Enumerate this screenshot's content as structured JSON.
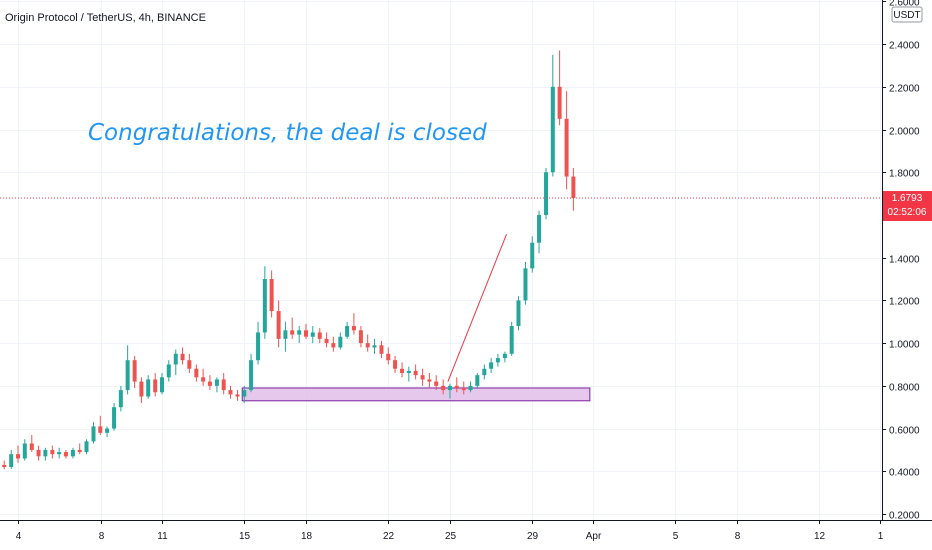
{
  "header": {
    "title": "Origin Protocol / TetherUS, 4h, BINANCE"
  },
  "annotation": {
    "text": "Congratulations, the deal is closed"
  },
  "price_scale": {
    "currency": "USDT",
    "last_price": "1.6793",
    "countdown": "02:52:06"
  },
  "colors": {
    "up": "#26a69a",
    "down": "#ef5350",
    "trend_line": "#f23645",
    "zone_fill": "#e1bee7",
    "zone_border": "#7b1fa2",
    "annotation": "#2196f3",
    "last_price": "#f23645",
    "axis": "#131722"
  },
  "chart_data": {
    "type": "candlestick",
    "title": "Origin Protocol / TetherUS, 4h, BINANCE",
    "x_tick_labels": [
      "4",
      "8",
      "11",
      "15",
      "18",
      "22",
      "25",
      "29",
      "Apr",
      "5",
      "8",
      "12",
      "1"
    ],
    "y_tick_labels": [
      "2.6000",
      "2.4000",
      "2.2000",
      "2.0000",
      "1.8000",
      "1.4000",
      "1.2000",
      "1.0000",
      "0.8000",
      "0.6000",
      "0.4000",
      "0.2000"
    ],
    "ylim": [
      0.18,
      2.62
    ],
    "x_range_days": [
      2,
      39
    ],
    "grid": true,
    "last_price": 1.6793,
    "support_zone": {
      "x_start": 14.9,
      "x_end": 31.8,
      "low": 0.73,
      "high": 0.79
    },
    "trend_line": [
      {
        "x": 24.9,
        "y": 0.82
      },
      {
        "x": 27.75,
        "y": 1.51
      }
    ],
    "candles": [
      [
        2.0,
        0.39,
        0.41,
        0.37,
        0.4
      ],
      [
        2.33,
        0.4,
        0.42,
        0.38,
        0.41
      ],
      [
        2.67,
        0.41,
        0.43,
        0.39,
        0.4
      ],
      [
        3.0,
        0.4,
        0.44,
        0.39,
        0.43
      ],
      [
        3.33,
        0.43,
        0.45,
        0.41,
        0.42
      ],
      [
        3.67,
        0.42,
        0.5,
        0.41,
        0.48
      ],
      [
        4.0,
        0.48,
        0.52,
        0.44,
        0.46
      ],
      [
        4.33,
        0.46,
        0.55,
        0.45,
        0.53
      ],
      [
        4.67,
        0.53,
        0.57,
        0.49,
        0.5
      ],
      [
        5.0,
        0.5,
        0.52,
        0.45,
        0.47
      ],
      [
        5.33,
        0.47,
        0.51,
        0.45,
        0.5
      ],
      [
        5.67,
        0.5,
        0.52,
        0.46,
        0.48
      ],
      [
        6.0,
        0.48,
        0.51,
        0.46,
        0.49
      ],
      [
        6.33,
        0.49,
        0.5,
        0.46,
        0.47
      ],
      [
        6.67,
        0.47,
        0.51,
        0.46,
        0.5
      ],
      [
        7.0,
        0.5,
        0.53,
        0.48,
        0.49
      ],
      [
        7.33,
        0.49,
        0.55,
        0.48,
        0.54
      ],
      [
        7.67,
        0.54,
        0.63,
        0.53,
        0.61
      ],
      [
        8.0,
        0.61,
        0.66,
        0.57,
        0.58
      ],
      [
        8.33,
        0.58,
        0.61,
        0.56,
        0.6
      ],
      [
        8.67,
        0.6,
        0.72,
        0.59,
        0.7
      ],
      [
        9.0,
        0.7,
        0.8,
        0.68,
        0.78
      ],
      [
        9.33,
        0.78,
        0.99,
        0.76,
        0.92
      ],
      [
        9.67,
        0.92,
        0.94,
        0.79,
        0.82
      ],
      [
        10.0,
        0.82,
        0.84,
        0.72,
        0.75
      ],
      [
        10.33,
        0.75,
        0.85,
        0.74,
        0.83
      ],
      [
        10.67,
        0.83,
        0.86,
        0.75,
        0.77
      ],
      [
        11.0,
        0.77,
        0.86,
        0.76,
        0.84
      ],
      [
        11.33,
        0.84,
        0.92,
        0.82,
        0.9
      ],
      [
        11.67,
        0.9,
        0.97,
        0.85,
        0.95
      ],
      [
        12.0,
        0.95,
        0.98,
        0.9,
        0.92
      ],
      [
        12.33,
        0.92,
        0.95,
        0.86,
        0.88
      ],
      [
        12.67,
        0.88,
        0.9,
        0.82,
        0.84
      ],
      [
        13.0,
        0.84,
        0.88,
        0.8,
        0.82
      ],
      [
        13.33,
        0.82,
        0.85,
        0.78,
        0.8
      ],
      [
        13.67,
        0.8,
        0.84,
        0.77,
        0.83
      ],
      [
        14.0,
        0.83,
        0.86,
        0.76,
        0.78
      ],
      [
        14.33,
        0.78,
        0.8,
        0.74,
        0.76
      ],
      [
        14.67,
        0.76,
        0.78,
        0.73,
        0.75
      ],
      [
        15.0,
        0.75,
        0.8,
        0.72,
        0.78
      ],
      [
        15.33,
        0.78,
        0.95,
        0.77,
        0.92
      ],
      [
        15.67,
        0.92,
        1.1,
        0.9,
        1.05
      ],
      [
        16.0,
        1.05,
        1.36,
        1.02,
        1.3
      ],
      [
        16.33,
        1.3,
        1.34,
        1.12,
        1.15
      ],
      [
        16.67,
        1.15,
        1.2,
        0.98,
        1.02
      ],
      [
        17.0,
        1.02,
        1.1,
        0.96,
        1.06
      ],
      [
        17.33,
        1.06,
        1.12,
        1.02,
        1.04
      ],
      [
        17.67,
        1.04,
        1.08,
        1.0,
        1.06
      ],
      [
        18.0,
        1.06,
        1.09,
        1.02,
        1.03
      ],
      [
        18.33,
        1.03,
        1.08,
        1.0,
        1.05
      ],
      [
        18.67,
        1.05,
        1.07,
        1.0,
        1.02
      ],
      [
        19.0,
        1.02,
        1.05,
        0.98,
        1.0
      ],
      [
        19.33,
        1.0,
        1.03,
        0.96,
        0.98
      ],
      [
        19.67,
        0.98,
        1.05,
        0.97,
        1.03
      ],
      [
        20.0,
        1.03,
        1.1,
        1.02,
        1.08
      ],
      [
        20.33,
        1.08,
        1.14,
        1.04,
        1.06
      ],
      [
        20.67,
        1.06,
        1.08,
        0.98,
        1.0
      ],
      [
        21.0,
        1.0,
        1.04,
        0.96,
        0.98
      ],
      [
        21.33,
        0.98,
        1.02,
        0.95,
        0.99
      ],
      [
        21.67,
        0.99,
        1.01,
        0.93,
        0.95
      ],
      [
        22.0,
        0.95,
        0.98,
        0.9,
        0.92
      ],
      [
        22.33,
        0.92,
        0.94,
        0.86,
        0.88
      ],
      [
        22.67,
        0.88,
        0.91,
        0.84,
        0.86
      ],
      [
        23.0,
        0.86,
        0.89,
        0.82,
        0.87
      ],
      [
        23.33,
        0.87,
        0.9,
        0.83,
        0.85
      ],
      [
        23.67,
        0.85,
        0.88,
        0.8,
        0.83
      ],
      [
        24.0,
        0.83,
        0.86,
        0.79,
        0.82
      ],
      [
        24.33,
        0.82,
        0.85,
        0.78,
        0.8
      ],
      [
        24.67,
        0.8,
        0.83,
        0.76,
        0.78
      ],
      [
        25.0,
        0.78,
        0.81,
        0.74,
        0.8
      ],
      [
        25.33,
        0.8,
        0.84,
        0.77,
        0.79
      ],
      [
        25.67,
        0.79,
        0.82,
        0.76,
        0.78
      ],
      [
        26.0,
        0.78,
        0.82,
        0.77,
        0.8
      ],
      [
        26.33,
        0.8,
        0.86,
        0.79,
        0.85
      ],
      [
        26.67,
        0.85,
        0.9,
        0.83,
        0.88
      ],
      [
        27.0,
        0.88,
        0.93,
        0.86,
        0.91
      ],
      [
        27.33,
        0.91,
        0.95,
        0.89,
        0.93
      ],
      [
        27.67,
        0.93,
        0.96,
        0.91,
        0.95
      ],
      [
        28.0,
        0.95,
        1.1,
        0.94,
        1.08
      ],
      [
        28.33,
        1.08,
        1.22,
        1.06,
        1.2
      ],
      [
        28.67,
        1.2,
        1.38,
        1.18,
        1.35
      ],
      [
        29.0,
        1.35,
        1.5,
        1.33,
        1.47
      ],
      [
        29.33,
        1.47,
        1.62,
        1.42,
        1.6
      ],
      [
        29.67,
        1.6,
        1.82,
        1.58,
        1.8
      ],
      [
        30.0,
        1.8,
        2.35,
        1.78,
        2.2
      ],
      [
        30.33,
        2.2,
        2.37,
        2.02,
        2.05
      ],
      [
        30.67,
        2.05,
        2.18,
        1.72,
        1.78
      ],
      [
        31.0,
        1.78,
        1.82,
        1.62,
        1.6793
      ]
    ]
  }
}
